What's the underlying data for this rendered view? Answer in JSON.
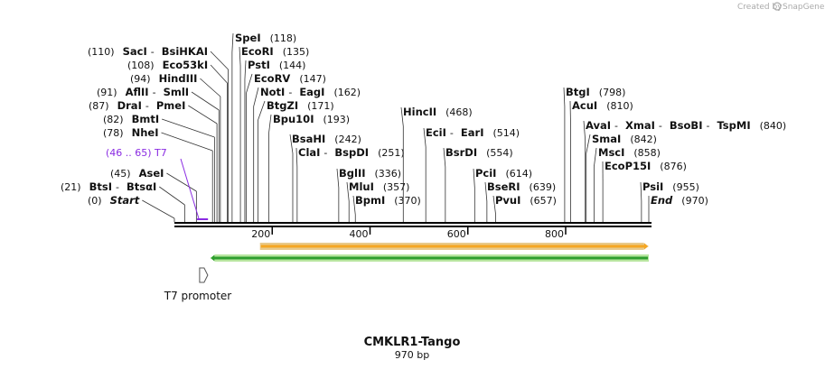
{
  "app": {
    "credit_prefix": "Created by",
    "credit_brand": "SnapGene"
  },
  "map": {
    "title": "CMKLR1-Tango",
    "length_label": "970 bp",
    "length_bp": 970,
    "tick_step": 200,
    "tick_labels": [
      "200",
      "400",
      "600",
      "800"
    ]
  },
  "colors": {
    "backbone": "#000000",
    "feature_line": "#8a2be2",
    "orf_orange_fill": "#f5a623",
    "orf_orange_border": "#e8c98a",
    "green_fill": "#2e9e2e",
    "green_border": "#b8e6a0",
    "promoter_arrow": "#555555"
  },
  "enzymes": [
    {
      "id": "start",
      "group": [
        {
          "name": "Start",
          "italic": true
        }
      ],
      "pos_label": "(0)",
      "positions": [
        0
      ],
      "prefix": ""
    },
    {
      "id": "btsi",
      "group": [
        {
          "name": "BtsI"
        },
        {
          "name": "BtsαI"
        }
      ],
      "pos_label": "(21)",
      "positions": [
        21
      ],
      "prefix": ""
    },
    {
      "id": "asei",
      "group": [
        {
          "name": "AseI"
        }
      ],
      "pos_label": "(45)",
      "positions": [
        45
      ],
      "prefix": ""
    },
    {
      "id": "nhei",
      "group": [
        {
          "name": "NheI"
        }
      ],
      "pos_label": "(78)",
      "positions": [
        78
      ],
      "prefix": ""
    },
    {
      "id": "bmti",
      "group": [
        {
          "name": "BmtI"
        }
      ],
      "pos_label": "(82)",
      "positions": [
        82
      ],
      "prefix": ""
    },
    {
      "id": "drai",
      "group": [
        {
          "name": "DraI"
        },
        {
          "name": "PmeI"
        }
      ],
      "pos_label": "(87)",
      "positions": [
        87
      ],
      "prefix": ""
    },
    {
      "id": "aflii",
      "group": [
        {
          "name": "AflII"
        },
        {
          "name": "SmlI"
        }
      ],
      "pos_label": "(91)",
      "positions": [
        91
      ],
      "prefix": ""
    },
    {
      "id": "hindiii",
      "group": [
        {
          "name": "HindIII"
        }
      ],
      "pos_label": "(94)",
      "positions": [
        94
      ],
      "prefix": ""
    },
    {
      "id": "eco53ki",
      "group": [
        {
          "name": "Eco53kI"
        }
      ],
      "pos_label": "(108)",
      "positions": [
        108
      ],
      "prefix": ""
    },
    {
      "id": "saci",
      "group": [
        {
          "name": "SacI"
        },
        {
          "name": "BsiHKAI"
        }
      ],
      "pos_label": "(110)",
      "positions": [
        110
      ],
      "prefix": ""
    },
    {
      "id": "spei",
      "group": [
        {
          "name": "SpeI"
        }
      ],
      "pos_label": "(118)",
      "positions": [
        118
      ],
      "prefix": ""
    },
    {
      "id": "ecori",
      "group": [
        {
          "name": "EcoRI"
        }
      ],
      "pos_label": "(135)",
      "positions": [
        135
      ],
      "prefix": ""
    },
    {
      "id": "psti",
      "group": [
        {
          "name": "PstI"
        }
      ],
      "pos_label": "(144)",
      "positions": [
        144
      ],
      "prefix": ""
    },
    {
      "id": "ecorv",
      "group": [
        {
          "name": "EcoRV"
        }
      ],
      "pos_label": "(147)",
      "positions": [
        147
      ],
      "prefix": ""
    },
    {
      "id": "noti",
      "group": [
        {
          "name": "NotI"
        },
        {
          "name": "EagI"
        }
      ],
      "pos_label": "(162)",
      "positions": [
        162
      ],
      "prefix": ""
    },
    {
      "id": "btgzi",
      "group": [
        {
          "name": "BtgZI"
        }
      ],
      "pos_label": "(171)",
      "positions": [
        171
      ],
      "prefix": ""
    },
    {
      "id": "bpu10i",
      "group": [
        {
          "name": "Bpu10I"
        }
      ],
      "pos_label": "(193)",
      "positions": [
        193
      ],
      "prefix": ""
    },
    {
      "id": "bsahi",
      "group": [
        {
          "name": "BsaHI"
        }
      ],
      "pos_label": "(242)",
      "positions": [
        242
      ],
      "prefix": ""
    },
    {
      "id": "clai",
      "group": [
        {
          "name": "ClaI"
        },
        {
          "name": "BspDI"
        }
      ],
      "pos_label": "(251)",
      "positions": [
        251
      ],
      "prefix": ""
    },
    {
      "id": "bglii",
      "group": [
        {
          "name": "BglII"
        }
      ],
      "pos_label": "(336)",
      "positions": [
        336
      ],
      "prefix": ""
    },
    {
      "id": "mlui",
      "group": [
        {
          "name": "MluI"
        }
      ],
      "pos_label": "(357)",
      "positions": [
        357
      ],
      "prefix": ""
    },
    {
      "id": "bpmi",
      "group": [
        {
          "name": "BpmI"
        }
      ],
      "pos_label": "(370)",
      "positions": [
        370
      ],
      "prefix": ""
    },
    {
      "id": "hincii",
      "group": [
        {
          "name": "HincII"
        }
      ],
      "pos_label": "(468)",
      "positions": [
        468
      ],
      "prefix": ""
    },
    {
      "id": "ecii",
      "group": [
        {
          "name": "EciI"
        },
        {
          "name": "EarI"
        }
      ],
      "pos_label": "(514)",
      "positions": [
        514
      ],
      "prefix": ""
    },
    {
      "id": "bsrdi",
      "group": [
        {
          "name": "BsrDI"
        }
      ],
      "pos_label": "(554)",
      "positions": [
        554
      ],
      "prefix": ""
    },
    {
      "id": "pcii",
      "group": [
        {
          "name": "PciI"
        }
      ],
      "pos_label": "(614)",
      "positions": [
        614
      ],
      "prefix": ""
    },
    {
      "id": "bseri",
      "group": [
        {
          "name": "BseRI"
        }
      ],
      "pos_label": "(639)",
      "positions": [
        639
      ],
      "prefix": ""
    },
    {
      "id": "pvui",
      "group": [
        {
          "name": "PvuI"
        }
      ],
      "pos_label": "(657)",
      "positions": [
        657
      ],
      "prefix": ""
    },
    {
      "id": "btgi",
      "group": [
        {
          "name": "BtgI"
        }
      ],
      "pos_label": "(798)",
      "positions": [
        798
      ],
      "prefix": ""
    },
    {
      "id": "acui",
      "group": [
        {
          "name": "AcuI"
        }
      ],
      "pos_label": "(810)",
      "positions": [
        810
      ],
      "prefix": ""
    },
    {
      "id": "avai",
      "group": [
        {
          "name": "AvaI"
        },
        {
          "name": "XmaI"
        },
        {
          "name": "BsoBI"
        },
        {
          "name": "TspMI"
        }
      ],
      "pos_label": "(840)",
      "positions": [
        840
      ],
      "prefix": ""
    },
    {
      "id": "smai",
      "group": [
        {
          "name": "SmaI"
        }
      ],
      "pos_label": "(842)",
      "positions": [
        842
      ],
      "prefix": ""
    },
    {
      "id": "msci",
      "group": [
        {
          "name": "MscI"
        }
      ],
      "pos_label": "(858)",
      "positions": [
        858
      ],
      "prefix": ""
    },
    {
      "id": "ecop15i",
      "group": [
        {
          "name": "EcoP15I"
        }
      ],
      "pos_label": "(876)",
      "positions": [
        876
      ],
      "prefix": ""
    },
    {
      "id": "psii",
      "group": [
        {
          "name": "PsiI"
        }
      ],
      "pos_label": "(955)",
      "positions": [
        955
      ],
      "prefix": ""
    },
    {
      "id": "end",
      "group": [
        {
          "name": "End",
          "italic": true
        }
      ],
      "pos_label": "(970)",
      "positions": [
        970
      ],
      "prefix": ""
    }
  ],
  "primer_site": {
    "label": "(46 .. 65)  T7",
    "start": 46,
    "end": 65
  },
  "features": {
    "orange_orf": {
      "start": 175,
      "end": 970
    },
    "green_region": {
      "start": 80,
      "end": 970
    },
    "promoter": {
      "label": "T7 promoter",
      "start": 46,
      "end": 65
    }
  }
}
